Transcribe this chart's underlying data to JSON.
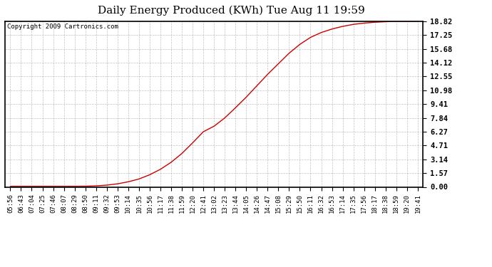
{
  "title": "Daily Energy Produced (KWh) Tue Aug 11 19:59",
  "copyright_text": "Copyright 2009 Cartronics.com",
  "line_color": "#cc0000",
  "background_color": "#ffffff",
  "grid_color": "#999999",
  "yticks": [
    0.0,
    1.57,
    3.14,
    4.71,
    6.27,
    7.84,
    9.41,
    10.98,
    12.55,
    14.12,
    15.68,
    17.25,
    18.82
  ],
  "ymax": 18.82,
  "xtick_labels": [
    "05:56",
    "06:43",
    "07:04",
    "07:25",
    "07:46",
    "08:07",
    "08:29",
    "08:50",
    "09:11",
    "09:32",
    "09:53",
    "10:14",
    "10:35",
    "10:56",
    "11:17",
    "11:38",
    "11:59",
    "12:20",
    "12:41",
    "13:02",
    "13:23",
    "13:44",
    "14:05",
    "14:26",
    "14:47",
    "15:08",
    "15:29",
    "15:50",
    "16:11",
    "16:32",
    "16:53",
    "17:14",
    "17:35",
    "17:56",
    "18:17",
    "18:38",
    "18:59",
    "19:20",
    "19:41"
  ],
  "curve_y_values": [
    0.07,
    0.07,
    0.07,
    0.07,
    0.07,
    0.07,
    0.07,
    0.08,
    0.12,
    0.2,
    0.35,
    0.58,
    0.9,
    1.38,
    2.0,
    2.8,
    3.8,
    5.0,
    6.27,
    6.9,
    7.84,
    9.0,
    10.2,
    11.5,
    12.8,
    14.0,
    15.2,
    16.2,
    17.0,
    17.55,
    17.95,
    18.25,
    18.48,
    18.62,
    18.72,
    18.78,
    18.82,
    18.82,
    18.82
  ]
}
